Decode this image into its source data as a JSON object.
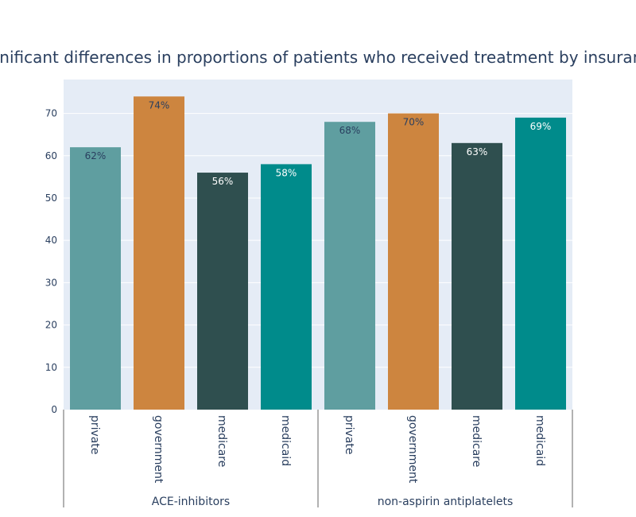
{
  "chart_data": {
    "type": "bar",
    "title": "Significant differences in proportions of patients who received treatment by insurance",
    "groups": [
      {
        "name": "ACE-inhibitors",
        "categories": [
          "private",
          "government",
          "medicare",
          "medicaid"
        ],
        "values": [
          62,
          74,
          56,
          58
        ],
        "labels": [
          "62%",
          "74%",
          "56%",
          "58%"
        ]
      },
      {
        "name": "non-aspirin antiplatelets",
        "categories": [
          "private",
          "government",
          "medicare",
          "medicaid"
        ],
        "values": [
          68,
          70,
          63,
          69
        ],
        "labels": [
          "68%",
          "70%",
          "63%",
          "69%"
        ]
      }
    ],
    "category_colors": {
      "private": "#5f9ea0",
      "government": "#cd853f",
      "medicare": "#2f4f4f",
      "medicaid": "#008b8b"
    },
    "category_label_colors": {
      "private": "#2a3f5f",
      "government": "#2a3f5f",
      "medicare": "#ffffff",
      "medicaid": "#ffffff"
    },
    "yticks": [
      0,
      10,
      20,
      30,
      40,
      50,
      60,
      70
    ],
    "ylim": [
      0,
      78
    ],
    "grid": true,
    "plot_bgcolor": "#e5ecf6"
  }
}
